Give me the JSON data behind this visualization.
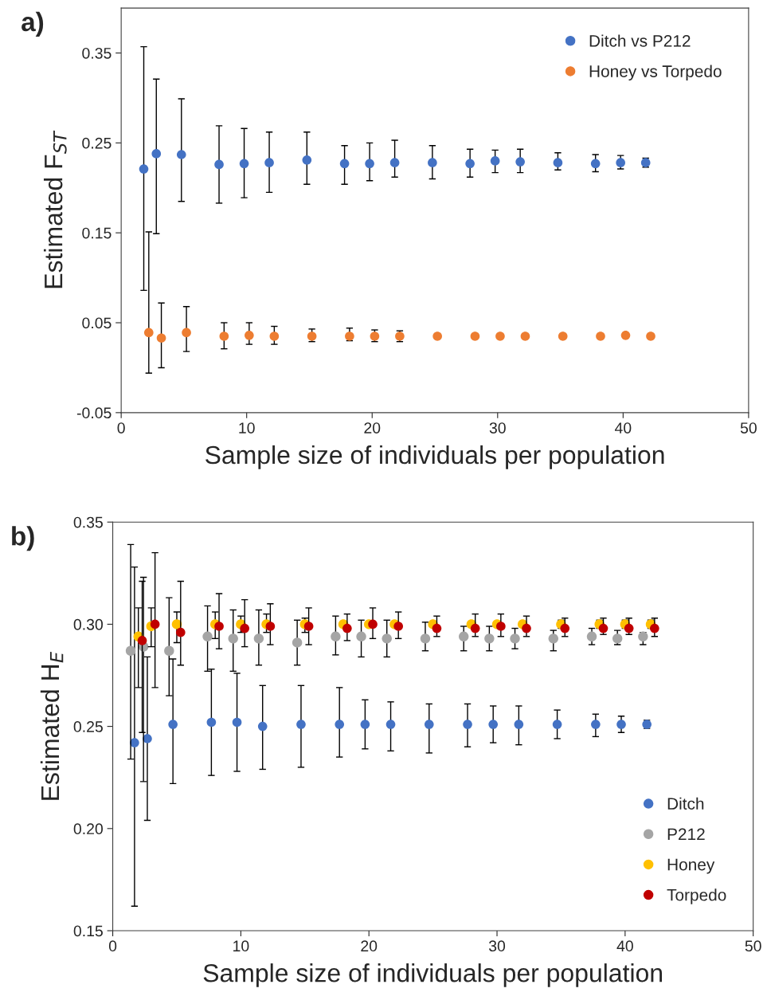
{
  "chart_data": [
    {
      "type": "scatter",
      "title": "a)",
      "xlabel": "Sample size of individuals per population",
      "ylabel": "Estimated F$_{ST}$",
      "xlim": [
        0,
        50
      ],
      "xticks": [
        0,
        10,
        20,
        30,
        40,
        50
      ],
      "ylim": [
        -0.05,
        0.4
      ],
      "yticks": [
        {
          "value": -0.05,
          "label": "-0.05"
        },
        0.05,
        0.15,
        0.25,
        0.35
      ],
      "legend": "top right",
      "marker": "circle",
      "grid": false,
      "series": [
        {
          "name": "Ditch vs P212",
          "color": "#4472c4",
          "x": [
            1.8,
            2.8,
            4.8,
            7.8,
            9.8,
            11.8,
            14.8,
            17.8,
            19.8,
            21.8,
            24.8,
            27.8,
            29.8,
            31.8,
            34.8,
            37.8,
            39.8,
            41.8
          ],
          "values": [
            0.221,
            0.238,
            0.237,
            0.226,
            0.227,
            0.228,
            0.231,
            0.227,
            0.227,
            0.228,
            0.228,
            0.227,
            0.23,
            0.229,
            0.228,
            0.227,
            0.228,
            0.228
          ],
          "errors": [
            [
              0.086,
              0.357
            ],
            [
              0.149,
              0.321
            ],
            [
              0.185,
              0.299
            ],
            [
              0.183,
              0.269
            ],
            [
              0.189,
              0.266
            ],
            [
              0.195,
              0.262
            ],
            [
              0.204,
              0.262
            ],
            [
              0.204,
              0.247
            ],
            [
              0.208,
              0.25
            ],
            [
              0.212,
              0.253
            ],
            [
              0.21,
              0.247
            ],
            [
              0.212,
              0.243
            ],
            [
              0.217,
              0.242
            ],
            [
              0.217,
              0.243
            ],
            [
              0.22,
              0.239
            ],
            [
              0.218,
              0.237
            ],
            [
              0.221,
              0.236
            ],
            [
              0.223,
              0.233
            ]
          ]
        },
        {
          "name": "Honey vs Torpedo",
          "color": "#ed7d31",
          "x": [
            2.2,
            3.2,
            5.2,
            8.2,
            10.2,
            12.2,
            15.2,
            18.2,
            20.2,
            22.2,
            25.2,
            28.2,
            30.2,
            32.2,
            35.2,
            38.2,
            40.2,
            42.2
          ],
          "values": [
            0.039,
            0.033,
            0.039,
            0.035,
            0.036,
            0.035,
            0.035,
            0.035,
            0.035,
            0.035,
            0.035,
            0.035,
            0.035,
            0.035,
            0.035,
            0.035,
            0.036,
            0.035
          ],
          "errors": [
            [
              -0.006,
              0.151
            ],
            [
              0.0,
              0.072
            ],
            [
              0.018,
              0.068
            ],
            [
              0.021,
              0.05
            ],
            [
              0.026,
              0.05
            ],
            [
              0.026,
              0.046
            ],
            [
              0.029,
              0.043
            ],
            [
              0.03,
              0.044
            ],
            [
              0.029,
              0.042
            ],
            [
              0.029,
              0.041
            ],
            null,
            null,
            null,
            null,
            null,
            null,
            null,
            null
          ]
        }
      ]
    },
    {
      "type": "scatter",
      "title": "b)",
      "xlabel": "Sample size of individuals per population",
      "ylabel": "Estimated H$_{E}$",
      "xlim": [
        0,
        50
      ],
      "xticks": [
        0,
        10,
        20,
        30,
        40,
        50
      ],
      "ylim": [
        0.15,
        0.35
      ],
      "yticks": [
        0.15,
        {
          "value": 0.2,
          "label": "0.20"
        },
        0.25,
        {
          "value": 0.3,
          "label": "0.30"
        },
        0.35
      ],
      "legend": "bottom right",
      "marker": "circle",
      "grid": false,
      "series": [
        {
          "name": "Ditch",
          "color": "#4472c4",
          "x": [
            1.7,
            2.7,
            4.7,
            7.7,
            9.7,
            11.7,
            14.7,
            17.7,
            19.7,
            21.7,
            24.7,
            27.7,
            29.7,
            31.7,
            34.7,
            37.7,
            39.7,
            41.7
          ],
          "values": [
            0.242,
            0.244,
            0.251,
            0.252,
            0.252,
            0.25,
            0.251,
            0.251,
            0.251,
            0.251,
            0.251,
            0.251,
            0.251,
            0.251,
            0.251,
            0.251,
            0.251,
            0.251
          ],
          "errors": [
            [
              0.162,
              0.328
            ],
            [
              0.204,
              0.284
            ],
            [
              0.222,
              0.283
            ],
            [
              0.226,
              0.278
            ],
            [
              0.228,
              0.276
            ],
            [
              0.229,
              0.27
            ],
            [
              0.23,
              0.27
            ],
            [
              0.235,
              0.269
            ],
            [
              0.239,
              0.263
            ],
            [
              0.238,
              0.262
            ],
            [
              0.237,
              0.261
            ],
            [
              0.24,
              0.261
            ],
            [
              0.242,
              0.26
            ],
            [
              0.241,
              0.26
            ],
            [
              0.244,
              0.258
            ],
            [
              0.245,
              0.256
            ],
            [
              0.247,
              0.255
            ],
            [
              0.249,
              0.253
            ]
          ]
        },
        {
          "name": "P212",
          "color": "#a5a5a5",
          "x": [
            1.4,
            2.4,
            4.4,
            7.4,
            9.4,
            11.4,
            14.4,
            17.4,
            19.4,
            21.4,
            24.4,
            27.4,
            29.4,
            31.4,
            34.4,
            37.4,
            39.4,
            41.4
          ],
          "values": [
            0.287,
            0.289,
            0.287,
            0.294,
            0.293,
            0.293,
            0.291,
            0.294,
            0.294,
            0.293,
            0.293,
            0.294,
            0.293,
            0.293,
            0.293,
            0.294,
            0.293,
            0.294
          ],
          "errors": [
            [
              0.234,
              0.339
            ],
            [
              0.223,
              0.323
            ],
            [
              0.265,
              0.313
            ],
            [
              0.277,
              0.309
            ],
            [
              0.277,
              0.307
            ],
            [
              0.28,
              0.307
            ],
            [
              0.28,
              0.302
            ],
            [
              0.285,
              0.304
            ],
            [
              0.284,
              0.302
            ],
            [
              0.284,
              0.302
            ],
            [
              0.287,
              0.301
            ],
            [
              0.287,
              0.299
            ],
            [
              0.287,
              0.299
            ],
            [
              0.288,
              0.298
            ],
            [
              0.287,
              0.297
            ],
            [
              0.29,
              0.298
            ],
            [
              0.29,
              0.297
            ],
            [
              0.29,
              0.296
            ]
          ]
        },
        {
          "name": "Honey",
          "color": "#ffc000",
          "x": [
            2,
            3,
            5,
            8,
            10,
            12,
            15,
            18,
            20,
            22,
            25,
            28,
            30,
            32,
            35,
            38,
            40,
            42
          ],
          "values": [
            0.294,
            0.299,
            0.3,
            0.3,
            0.3,
            0.3,
            0.3,
            0.3,
            0.3,
            0.3,
            0.3,
            0.3,
            0.3,
            0.3,
            0.3,
            0.3,
            0.3,
            0.3
          ],
          "errors": [
            [
              0.269,
              0.308
            ],
            [
              0.289,
              0.308
            ],
            [
              0.291,
              0.306
            ],
            [
              0.293,
              0.306
            ],
            [
              0.296,
              0.304
            ],
            [
              0.296,
              0.305
            ],
            [
              0.296,
              0.303
            ],
            null,
            null,
            null,
            null,
            null,
            null,
            null,
            [
              0.298,
              0.302
            ],
            [
              0.298,
              0.302
            ],
            [
              0.298,
              0.302
            ],
            [
              0.298,
              0.302
            ]
          ]
        },
        {
          "name": "Torpedo",
          "color": "#c00000",
          "x": [
            2.3,
            3.3,
            5.3,
            8.3,
            10.3,
            12.3,
            15.3,
            18.3,
            20.3,
            22.3,
            25.3,
            28.3,
            30.3,
            32.3,
            35.3,
            38.3,
            40.3,
            42.3
          ],
          "values": [
            0.292,
            0.3,
            0.296,
            0.299,
            0.298,
            0.299,
            0.299,
            0.298,
            0.3,
            0.299,
            0.298,
            0.298,
            0.299,
            0.298,
            0.298,
            0.298,
            0.298,
            0.298
          ],
          "errors": [
            [
              0.247,
              0.321
            ],
            [
              0.269,
              0.335
            ],
            [
              0.28,
              0.321
            ],
            [
              0.288,
              0.315
            ],
            [
              0.289,
              0.312
            ],
            [
              0.29,
              0.31
            ],
            [
              0.29,
              0.308
            ],
            [
              0.292,
              0.305
            ],
            [
              0.293,
              0.308
            ],
            [
              0.293,
              0.306
            ],
            [
              0.294,
              0.304
            ],
            [
              0.294,
              0.305
            ],
            [
              0.294,
              0.305
            ],
            [
              0.294,
              0.304
            ],
            [
              0.294,
              0.303
            ],
            [
              0.295,
              0.303
            ],
            [
              0.295,
              0.303
            ],
            [
              0.294,
              0.303
            ]
          ]
        }
      ]
    }
  ]
}
